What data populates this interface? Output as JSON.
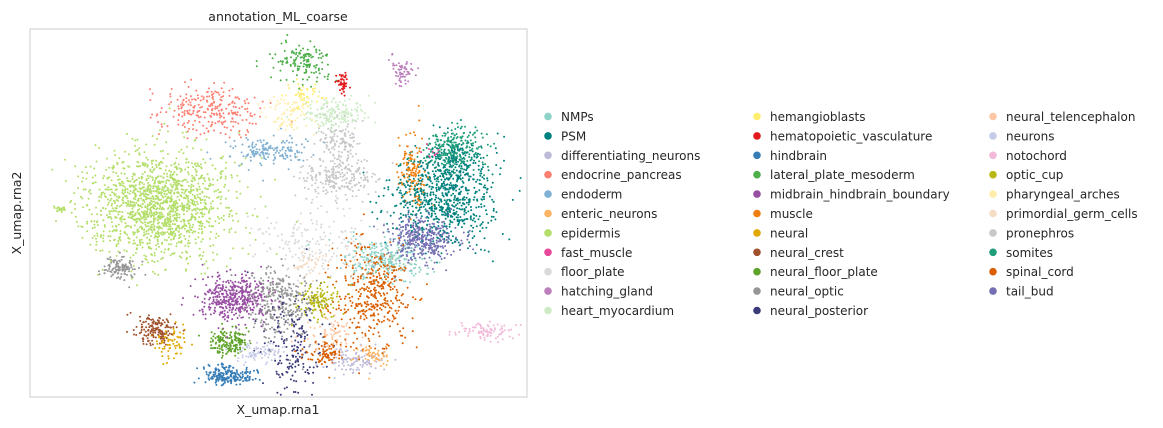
{
  "chart_data": {
    "type": "scatter",
    "title": "annotation_ML_coarse",
    "xlabel": "X_umap.rna1",
    "ylabel": "X_umap.rna2",
    "xlim": [
      0,
      100
    ],
    "ylim": [
      0,
      100
    ],
    "grid": false,
    "ticks": false,
    "legend": "right, 3 columns",
    "categories": [
      {
        "name": "NMPs",
        "color": "#8dd3c7",
        "clusters": [
          {
            "x": 72,
            "y": 37,
            "sx": 4,
            "sy": 3,
            "n": 260
          }
        ]
      },
      {
        "name": "PSM",
        "color": "#00827f",
        "clusters": [
          {
            "x": 83,
            "y": 54,
            "sx": 5,
            "sy": 6,
            "n": 700
          },
          {
            "x": 86,
            "y": 64,
            "sx": 2.5,
            "sy": 4,
            "n": 150
          }
        ]
      },
      {
        "name": "differentiating_neurons",
        "color": "#bebada",
        "clusters": [
          {
            "x": 65,
            "y": 10,
            "sx": 3,
            "sy": 2,
            "n": 100
          }
        ]
      },
      {
        "name": "endocrine_pancreas",
        "color": "#fb8072",
        "clusters": [
          {
            "x": 36,
            "y": 78,
            "sx": 5,
            "sy": 3.5,
            "n": 260
          }
        ]
      },
      {
        "name": "endoderm",
        "color": "#80b1d3",
        "clusters": [
          {
            "x": 48,
            "y": 67,
            "sx": 4,
            "sy": 2,
            "n": 160
          }
        ]
      },
      {
        "name": "enteric_neurons",
        "color": "#fdb462",
        "clusters": [
          {
            "x": 69,
            "y": 11,
            "sx": 2,
            "sy": 1.5,
            "n": 60
          }
        ]
      },
      {
        "name": "epidermis",
        "color": "#b3de69",
        "clusters": [
          {
            "x": 26,
            "y": 52,
            "sx": 7,
            "sy": 7,
            "n": 1500
          },
          {
            "x": 6,
            "y": 51,
            "sx": 0.7,
            "sy": 0.5,
            "n": 20
          }
        ]
      },
      {
        "name": "fast_muscle",
        "color": "#e7489a",
        "clusters": [
          {
            "x": 81,
            "y": 66,
            "sx": 1,
            "sy": 1,
            "n": 12
          }
        ]
      },
      {
        "name": "floor_plate",
        "color": "#d9d9d9",
        "clusters": [
          {
            "x": 58,
            "y": 42,
            "sx": 6,
            "sy": 5,
            "n": 180
          }
        ]
      },
      {
        "name": "hatching_gland",
        "color": "#bc80bd",
        "clusters": [
          {
            "x": 75,
            "y": 89,
            "sx": 1.2,
            "sy": 2,
            "n": 60
          }
        ]
      },
      {
        "name": "heart_myocardium",
        "color": "#ccebc5",
        "clusters": [
          {
            "x": 61,
            "y": 77,
            "sx": 3,
            "sy": 2,
            "n": 160
          }
        ]
      },
      {
        "name": "hemangioblasts",
        "color": "#ffed6f",
        "clusters": [
          {
            "x": 55,
            "y": 82,
            "sx": 2,
            "sy": 2,
            "n": 50
          }
        ]
      },
      {
        "name": "hematopoietic_vasculature",
        "color": "#e31a1c",
        "clusters": [
          {
            "x": 63,
            "y": 85,
            "sx": 0.7,
            "sy": 1.5,
            "n": 45
          }
        ]
      },
      {
        "name": "hindbrain",
        "color": "#377eb8",
        "clusters": [
          {
            "x": 40,
            "y": 6,
            "sx": 2.5,
            "sy": 1.3,
            "n": 200
          }
        ]
      },
      {
        "name": "lateral_plate_mesoderm",
        "color": "#4daf4a",
        "clusters": [
          {
            "x": 55,
            "y": 91,
            "sx": 3,
            "sy": 3,
            "n": 140
          }
        ]
      },
      {
        "name": "midbrain_hindbrain_boundary",
        "color": "#984ea3",
        "clusters": [
          {
            "x": 41,
            "y": 27,
            "sx": 3.5,
            "sy": 3,
            "n": 420
          }
        ]
      },
      {
        "name": "muscle",
        "color": "#f07f0f",
        "clusters": [
          {
            "x": 77,
            "y": 61,
            "sx": 1.5,
            "sy": 5,
            "n": 130
          }
        ]
      },
      {
        "name": "neural",
        "color": "#e0a800",
        "clusters": [
          {
            "x": 28,
            "y": 15,
            "sx": 1.5,
            "sy": 2,
            "n": 70
          }
        ]
      },
      {
        "name": "neural_crest",
        "color": "#a0522d",
        "clusters": [
          {
            "x": 25,
            "y": 18,
            "sx": 2,
            "sy": 2,
            "n": 150
          }
        ]
      },
      {
        "name": "neural_floor_plate",
        "color": "#5ea32a",
        "clusters": [
          {
            "x": 40,
            "y": 15,
            "sx": 2,
            "sy": 1.8,
            "n": 170
          }
        ]
      },
      {
        "name": "neural_optic",
        "color": "#969696",
        "clusters": [
          {
            "x": 18,
            "y": 35,
            "sx": 1.8,
            "sy": 1.5,
            "n": 120
          },
          {
            "x": 50,
            "y": 26,
            "sx": 3.5,
            "sy": 5,
            "n": 320
          }
        ]
      },
      {
        "name": "neural_posterior",
        "color": "#3b3b7a",
        "clusters": [
          {
            "x": 53,
            "y": 15,
            "sx": 3,
            "sy": 7,
            "n": 180
          }
        ]
      },
      {
        "name": "neural_telencephalon",
        "color": "#fdc7a5",
        "clusters": [
          {
            "x": 61,
            "y": 17,
            "sx": 2.5,
            "sy": 2,
            "n": 70
          }
        ]
      },
      {
        "name": "neurons",
        "color": "#c6cbe8",
        "clusters": [
          {
            "x": 46,
            "y": 12,
            "sx": 3,
            "sy": 1.5,
            "n": 80
          }
        ]
      },
      {
        "name": "notochord",
        "color": "#f2b8d8",
        "clusters": [
          {
            "x": 92,
            "y": 18,
            "sx": 3.5,
            "sy": 1.2,
            "n": 90
          }
        ]
      },
      {
        "name": "optic_cup",
        "color": "#b8b812",
        "clusters": [
          {
            "x": 58,
            "y": 26,
            "sx": 2,
            "sy": 2.5,
            "n": 130
          }
        ]
      },
      {
        "name": "pharyngeal_arches",
        "color": "#ffedaa",
        "clusters": [
          {
            "x": 52,
            "y": 77,
            "sx": 2.5,
            "sy": 3,
            "n": 90
          }
        ]
      },
      {
        "name": "primordial_germ_cells",
        "color": "#f5dcc4",
        "clusters": [
          {
            "x": 56,
            "y": 36,
            "sx": 2,
            "sy": 2,
            "n": 40
          }
        ]
      },
      {
        "name": "pronephros",
        "color": "#c8c8c8",
        "clusters": [
          {
            "x": 61,
            "y": 60,
            "sx": 4,
            "sy": 3,
            "n": 240
          },
          {
            "x": 62,
            "y": 70,
            "sx": 2,
            "sy": 3,
            "n": 120
          }
        ]
      },
      {
        "name": "somites",
        "color": "#1f9e7a",
        "clusters": [
          {
            "x": 85,
            "y": 67,
            "sx": 3,
            "sy": 3,
            "n": 260
          }
        ]
      },
      {
        "name": "spinal_cord",
        "color": "#d95f02",
        "clusters": [
          {
            "x": 69,
            "y": 28,
            "sx": 3.5,
            "sy": 7,
            "n": 420
          },
          {
            "x": 59,
            "y": 12,
            "sx": 2,
            "sy": 1.5,
            "n": 90
          }
        ]
      },
      {
        "name": "tail_bud",
        "color": "#7570b3",
        "clusters": [
          {
            "x": 79,
            "y": 43,
            "sx": 3.5,
            "sy": 3,
            "n": 380
          }
        ]
      }
    ]
  }
}
